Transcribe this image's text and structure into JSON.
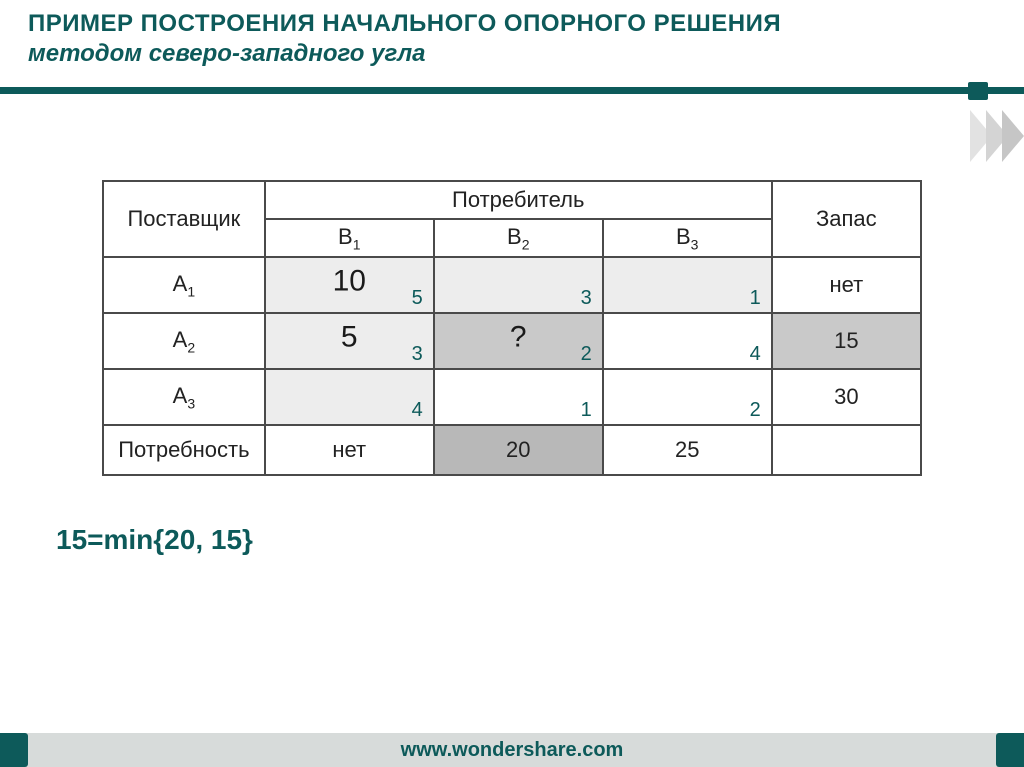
{
  "title_line1": "ПРИМЕР ПОСТРОЕНИЯ НАЧАЛЬНОГО ОПОРНОГО РЕШЕНИЯ",
  "title_line2": "методом северо-западного угла",
  "headers": {
    "supplier": "Поставщик",
    "consumer": "Потребитель",
    "stock": "Запас",
    "b": [
      "B",
      "B",
      "B"
    ],
    "b_sub": [
      "1",
      "2",
      "3"
    ]
  },
  "rows": [
    {
      "label_base": "A",
      "label_sub": "1",
      "cells": [
        {
          "alloc": "10",
          "cost": "5",
          "bg": "bg-lite"
        },
        {
          "alloc": "",
          "cost": "3",
          "bg": "bg-lite"
        },
        {
          "alloc": "",
          "cost": "1",
          "bg": "bg-lite"
        }
      ],
      "stock": "нет",
      "stock_bg": ""
    },
    {
      "label_base": "A",
      "label_sub": "2",
      "cells": [
        {
          "alloc": "5",
          "cost": "3",
          "bg": "bg-lite"
        },
        {
          "alloc": "?",
          "cost": "2",
          "bg": "bg-mid"
        },
        {
          "alloc": "",
          "cost": "4",
          "bg": ""
        }
      ],
      "stock": "15",
      "stock_bg": "bg-mid"
    },
    {
      "label_base": "A",
      "label_sub": "3",
      "cells": [
        {
          "alloc": "",
          "cost": "4",
          "bg": "bg-lite"
        },
        {
          "alloc": "",
          "cost": "1",
          "bg": ""
        },
        {
          "alloc": "",
          "cost": "2",
          "bg": ""
        }
      ],
      "stock": "30",
      "stock_bg": ""
    }
  ],
  "demand": {
    "label": "Потребность",
    "values": [
      "нет",
      "20",
      "25",
      ""
    ],
    "bg": [
      "",
      "bg-dark",
      "",
      ""
    ]
  },
  "formula": "15=min{20, 15}",
  "footer": "www.wondershare.com",
  "colors": {
    "brand": "#0d5a5a",
    "cell_border": "#4a4a4a",
    "bg_lite": "#ededed",
    "bg_mid": "#c9c9c9",
    "bg_dark": "#b8b8b8"
  }
}
